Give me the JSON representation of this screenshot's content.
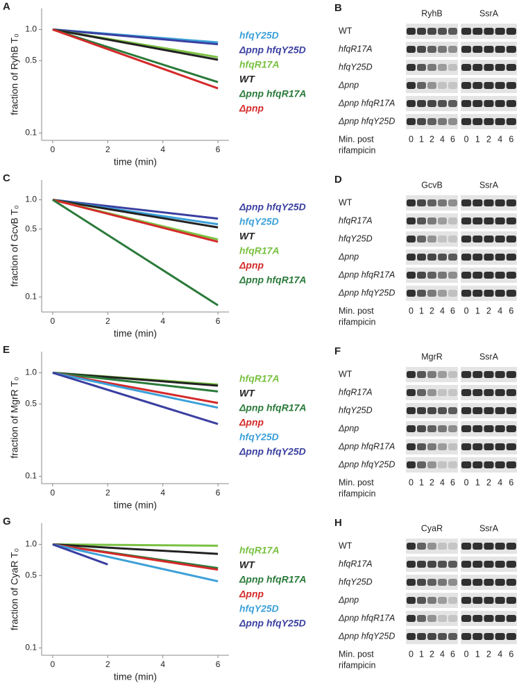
{
  "chart_data": [
    {
      "type": "line",
      "panel": "A",
      "ylabel": "fraction of RyhB T₀",
      "xlabel": "time (min)",
      "log": true,
      "x": [
        0,
        6
      ],
      "xlim": [
        -0.4,
        6.4
      ],
      "xticks": [
        0,
        2,
        4,
        6
      ],
      "ylim": [
        0.085,
        1.6
      ],
      "yticks": [
        {
          "value": 1,
          "label": "1.0"
        },
        0.5,
        0.1
      ],
      "series": [
        {
          "name": "hfqY25D",
          "color": "#3ca0d8",
          "values": [
            1,
            0.75
          ]
        },
        {
          "name": "Δpnp hfqY25D",
          "color": "#3a3fa0",
          "values": [
            1,
            0.72
          ]
        },
        {
          "name": "hfqR17A",
          "color": "#7ac143",
          "values": [
            1,
            0.54
          ]
        },
        {
          "name": "WT",
          "color": "#222222",
          "values": [
            1,
            0.51
          ]
        },
        {
          "name": "Δpnp hfqR17A",
          "color": "#2a7a3a",
          "values": [
            1,
            0.31
          ]
        },
        {
          "name": "Δpnp",
          "color": "#d42a2a",
          "values": [
            1,
            0.27
          ]
        }
      ]
    },
    {
      "type": "line",
      "panel": "C",
      "ylabel": "fraction of GcvB T₀",
      "xlabel": "time (min)",
      "log": true,
      "x": [
        0,
        6
      ],
      "xlim": [
        -0.4,
        6.4
      ],
      "xticks": [
        0,
        2,
        4,
        6
      ],
      "ylim": [
        0.07,
        1.6
      ],
      "yticks": [
        {
          "value": 1,
          "label": "1.0"
        },
        0.5,
        0.1
      ],
      "series": [
        {
          "name": "Δpnp hfqY25D",
          "color": "#3a3fa0",
          "values": [
            1,
            0.64
          ]
        },
        {
          "name": "hfqY25D",
          "color": "#3ca0d8",
          "values": [
            1,
            0.56
          ]
        },
        {
          "name": "WT",
          "color": "#222222",
          "values": [
            1,
            0.52
          ]
        },
        {
          "name": "hfqR17A",
          "color": "#7ac143",
          "values": [
            1,
            0.39
          ]
        },
        {
          "name": "Δpnp",
          "color": "#d42a2a",
          "values": [
            1,
            0.37
          ]
        },
        {
          "name": "Δpnp hfqR17A",
          "color": "#2a7a3a",
          "values": [
            1,
            0.082
          ]
        }
      ]
    },
    {
      "type": "line",
      "panel": "E",
      "ylabel": "fraction of MgrR T₀",
      "xlabel": "time (min)",
      "log": true,
      "x": [
        0,
        6
      ],
      "xlim": [
        -0.4,
        6.4
      ],
      "xticks": [
        0,
        2,
        4,
        6
      ],
      "ylim": [
        0.085,
        1.6
      ],
      "yticks": [
        {
          "value": 1,
          "label": "1.0"
        },
        0.5,
        0.1
      ],
      "series": [
        {
          "name": "hfqR17A",
          "color": "#7ac143",
          "values": [
            1,
            0.77
          ]
        },
        {
          "name": "WT",
          "color": "#222222",
          "values": [
            1,
            0.75
          ]
        },
        {
          "name": "Δpnp hfqR17A",
          "color": "#2a7a3a",
          "values": [
            1,
            0.66
          ]
        },
        {
          "name": "Δpnp",
          "color": "#d42a2a",
          "values": [
            1,
            0.51
          ]
        },
        {
          "name": "hfqY25D",
          "color": "#3ca0d8",
          "values": [
            1,
            0.46
          ]
        },
        {
          "name": "Δpnp hfqY25D",
          "color": "#3a3fa0",
          "values": [
            1,
            0.32
          ]
        }
      ]
    },
    {
      "type": "line",
      "panel": "G",
      "ylabel": "fraction of CyaR T₀",
      "xlabel": "time (min)",
      "log": true,
      "x": [
        0,
        2,
        6
      ],
      "xlim": [
        -0.4,
        6.4
      ],
      "xticks": [
        0,
        2,
        4,
        6
      ],
      "ylim": [
        0.085,
        1.6
      ],
      "yticks": [
        {
          "value": 1,
          "label": "1.0"
        },
        0.5,
        0.1
      ],
      "series": [
        {
          "name": "hfqR17A",
          "color": "#7ac143",
          "values": [
            1,
            0.99,
            0.97
          ]
        },
        {
          "name": "WT",
          "color": "#222222",
          "values": [
            1,
            0.93,
            0.81
          ]
        },
        {
          "name": "Δpnp hfqR17A",
          "color": "#2a7a3a",
          "values": [
            1,
            0.84,
            0.59
          ]
        },
        {
          "name": "Δpnp",
          "color": "#d42a2a",
          "values": [
            1,
            0.83,
            0.57
          ]
        },
        {
          "name": "hfqY25D",
          "color": "#3ca0d8",
          "values": [
            1,
            0.76,
            0.44
          ]
        },
        {
          "name": "Δpnp hfqY25D",
          "color": "#3a3fa0",
          "values": [
            1,
            0.64,
            null
          ]
        }
      ]
    }
  ],
  "gels": [
    {
      "panel": "B",
      "probes": [
        "RyhB",
        "SsrA"
      ],
      "rows": [
        "WT",
        "hfqR17A",
        "hfqY25D",
        "Δpnp",
        "Δpnp hfqR17A",
        "Δpnp hfqY25D"
      ],
      "time_label": [
        "Min. post",
        "rifampicin"
      ],
      "lanes": [
        0,
        1,
        2,
        4,
        6
      ]
    },
    {
      "panel": "D",
      "probes": [
        "GcvB",
        "SsrA"
      ],
      "rows": [
        "WT",
        "hfqR17A",
        "hfqY25D",
        "Δpnp",
        "Δpnp hfqR17A",
        "Δpnp hfqY25D"
      ],
      "time_label": [
        "Min. post",
        "rifampicin"
      ],
      "lanes": [
        0,
        1,
        2,
        4,
        6
      ]
    },
    {
      "panel": "F",
      "probes": [
        "MgrR",
        "SsrA"
      ],
      "rows": [
        "WT",
        "hfqR17A",
        "hfqY25D",
        "Δpnp",
        "Δpnp hfqR17A",
        "Δpnp hfqY25D"
      ],
      "time_label": [
        "Min. post",
        "rifampicin"
      ],
      "lanes": [
        0,
        1,
        2,
        4,
        6
      ]
    },
    {
      "panel": "H",
      "probes": [
        "CyaR",
        "SsrA"
      ],
      "rows": [
        "WT",
        "hfqR17A",
        "hfqY25D",
        "Δpnp",
        "Δpnp hfqR17A",
        "Δpnp hfqY25D"
      ],
      "time_label": [
        "Min. post",
        "rifampicin"
      ],
      "lanes": [
        0,
        1,
        2,
        4,
        6
      ]
    }
  ]
}
